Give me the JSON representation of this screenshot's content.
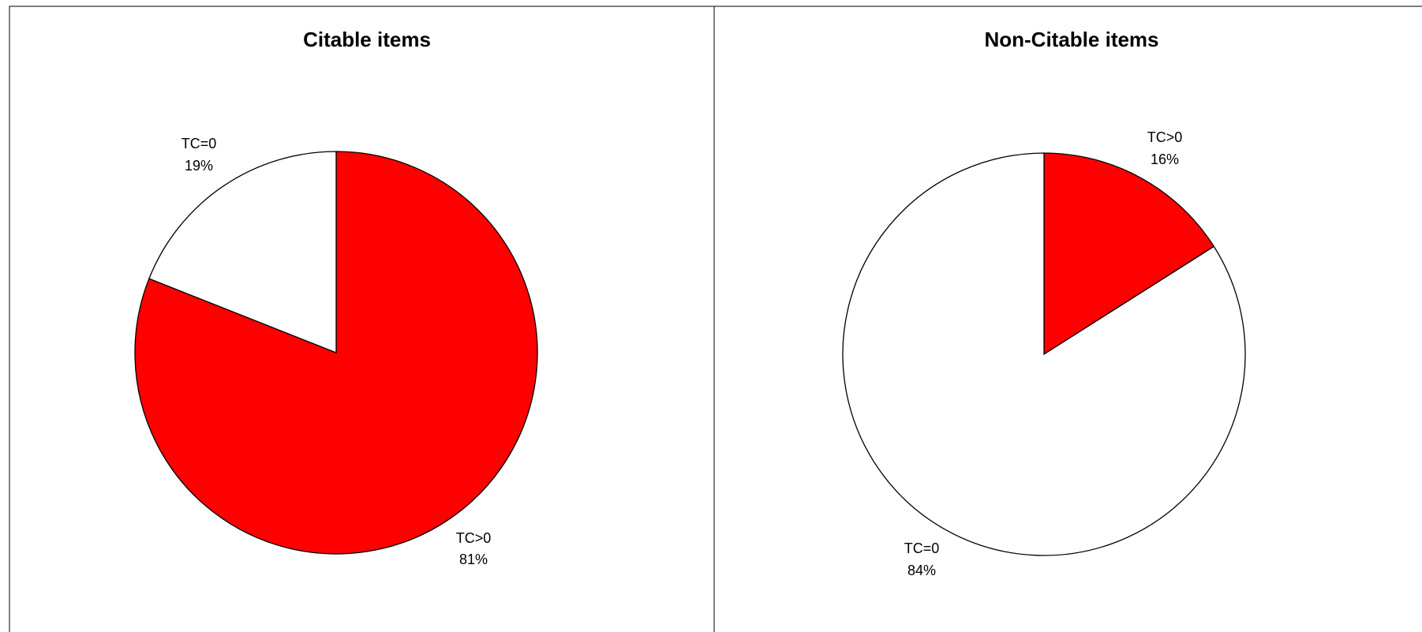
{
  "chart_data": [
    {
      "type": "pie",
      "title": "Citable items",
      "series": [
        {
          "values": [
            81,
            19
          ]
        }
      ],
      "categories": [
        "TC>0",
        "TC=0"
      ],
      "labels": [
        {
          "name": "TC>0",
          "value": "81%"
        },
        {
          "name": "TC=0",
          "value": "19%"
        }
      ],
      "colors": [
        "#ff0000",
        "#ffffff"
      ]
    },
    {
      "type": "pie",
      "title": "Non-Citable items",
      "series": [
        {
          "values": [
            16,
            84
          ]
        }
      ],
      "categories": [
        "TC>0",
        "TC=0"
      ],
      "labels": [
        {
          "name": "TC>0",
          "value": "16%"
        },
        {
          "name": "TC=0",
          "value": "84%"
        }
      ],
      "colors": [
        "#ff0000",
        "#ffffff"
      ]
    }
  ]
}
